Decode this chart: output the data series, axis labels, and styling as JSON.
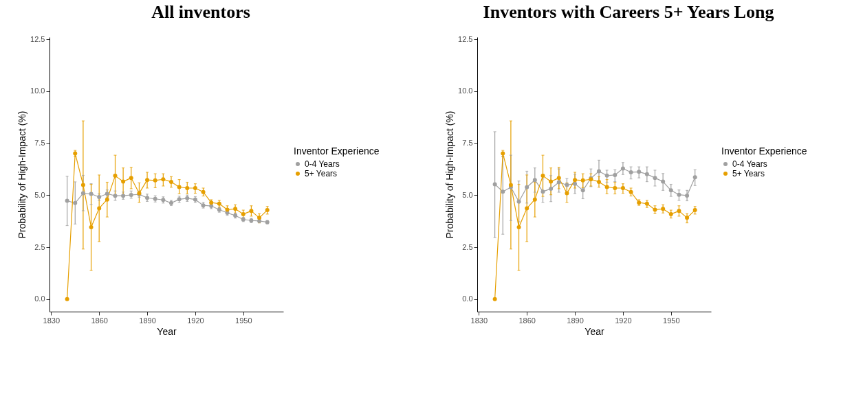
{
  "chart_data": [
    {
      "type": "line",
      "title": "All inventors",
      "xlabel": "Year",
      "ylabel": "Probability of High-Impact (%)",
      "legend_title": "Inventor Experience",
      "legend": "right",
      "marker": "circle",
      "grid": false,
      "x": [
        1840,
        1845,
        1850,
        1855,
        1860,
        1865,
        1870,
        1875,
        1880,
        1885,
        1890,
        1895,
        1900,
        1905,
        1910,
        1915,
        1920,
        1925,
        1930,
        1935,
        1940,
        1945,
        1950,
        1955,
        1960,
        1965
      ],
      "xlim": [
        1829,
        1975
      ],
      "xticks": [
        1830,
        1860,
        1890,
        1920,
        1950
      ],
      "ylim": [
        -0.6,
        12.6
      ],
      "yticks": [
        {
          "value": 0,
          "label": "0.0"
        },
        2.5,
        {
          "value": 5,
          "label": "5.0"
        },
        7.5,
        {
          "value": 10,
          "label": "10.0"
        },
        12.5
      ],
      "series": [
        {
          "name": "0-4 Years",
          "color": "#a0a0a0",
          "values": [
            4.73,
            4.62,
            5.09,
            5.06,
            4.91,
            5.07,
            4.97,
            4.97,
            5.01,
            5.04,
            4.87,
            4.82,
            4.77,
            4.62,
            4.8,
            4.85,
            4.79,
            4.51,
            4.48,
            4.3,
            4.15,
            4.02,
            3.83,
            3.78,
            3.76,
            3.7
          ],
          "errors": [
            [
              3.54,
              5.91
            ],
            [
              3.61,
              5.64
            ],
            [
              4.25,
              5.95
            ],
            [
              4.55,
              5.55
            ],
            [
              4.75,
              5.07
            ],
            [
              4.9,
              5.25
            ],
            [
              4.75,
              5.2
            ],
            [
              4.8,
              5.15
            ],
            [
              4.85,
              5.2
            ],
            [
              4.9,
              5.2
            ],
            [
              4.7,
              5.05
            ],
            [
              4.67,
              4.97
            ],
            [
              4.62,
              4.92
            ],
            [
              4.5,
              4.75
            ],
            [
              4.65,
              4.95
            ],
            [
              4.7,
              5.0
            ],
            [
              4.65,
              4.93
            ],
            [
              4.38,
              4.65
            ],
            [
              4.35,
              4.6
            ],
            [
              4.18,
              4.42
            ],
            [
              4.03,
              4.27
            ],
            [
              3.9,
              4.13
            ],
            [
              3.73,
              3.93
            ],
            [
              3.68,
              3.88
            ],
            [
              3.67,
              3.85
            ],
            [
              3.62,
              3.78
            ]
          ]
        },
        {
          "name": "5+ Years",
          "color": "#e69f00",
          "values": [
            0,
            7.01,
            5.49,
            3.46,
            4.37,
            4.79,
            5.93,
            5.65,
            5.83,
            5.09,
            5.73,
            5.71,
            5.76,
            5.64,
            5.39,
            5.34,
            5.34,
            5.15,
            4.64,
            4.59,
            4.3,
            4.34,
            4.09,
            4.24,
            3.91,
            4.28
          ],
          "errors": [
            null,
            [
              6.85,
              7.15
            ],
            [
              2.41,
              8.57
            ],
            [
              1.38,
              5.52
            ],
            [
              2.77,
              5.97
            ],
            [
              3.95,
              5.62
            ],
            [
              4.94,
              6.92
            ],
            [
              5.02,
              6.31
            ],
            [
              5.31,
              6.34
            ],
            [
              4.65,
              5.59
            ],
            [
              5.34,
              6.1
            ],
            [
              5.36,
              6.03
            ],
            [
              5.44,
              6.03
            ],
            [
              5.38,
              5.89
            ],
            [
              5.07,
              5.75
            ],
            [
              5.06,
              5.62
            ],
            [
              5.09,
              5.55
            ],
            [
              4.96,
              5.34
            ],
            [
              4.51,
              4.78
            ],
            [
              4.41,
              4.75
            ],
            [
              4.11,
              4.49
            ],
            [
              4.14,
              4.54
            ],
            [
              3.9,
              4.28
            ],
            [
              3.99,
              4.49
            ],
            [
              3.67,
              4.11
            ],
            [
              4.09,
              4.46
            ]
          ]
        }
      ]
    },
    {
      "type": "line",
      "title": "Inventors with Careers 5+ Years Long",
      "xlabel": "Year",
      "ylabel": "Probability of High-Impact (%)",
      "legend_title": "Inventor Experience",
      "legend": "right",
      "marker": "circle",
      "grid": false,
      "x": [
        1840,
        1845,
        1850,
        1855,
        1860,
        1865,
        1870,
        1875,
        1880,
        1885,
        1890,
        1895,
        1900,
        1905,
        1910,
        1915,
        1920,
        1925,
        1930,
        1935,
        1940,
        1945,
        1950,
        1955,
        1960,
        1965
      ],
      "xlim": [
        1829,
        1975
      ],
      "xticks": [
        1830,
        1860,
        1890,
        1920,
        1950
      ],
      "ylim": [
        -0.6,
        12.6
      ],
      "yticks": [
        {
          "value": 0,
          "label": "0.0"
        },
        2.5,
        {
          "value": 5,
          "label": "5.0"
        },
        7.5,
        {
          "value": 10,
          "label": "10.0"
        },
        12.5
      ],
      "series": [
        {
          "name": "0-4 Years",
          "color": "#a0a0a0",
          "values": [
            5.52,
            5.17,
            5.38,
            4.69,
            5.38,
            5.73,
            5.17,
            5.31,
            5.62,
            5.49,
            5.55,
            5.23,
            5.81,
            6.15,
            5.94,
            5.97,
            6.28,
            6.1,
            6.12,
            6.01,
            5.83,
            5.65,
            5.23,
            5.02,
            4.98,
            5.86
          ],
          "errors": [
            [
              2.96,
              8.05
            ],
            [
              3.12,
              6.87
            ],
            [
              3.78,
              6.92
            ],
            [
              3.72,
              5.68
            ],
            [
              4.62,
              6.15
            ],
            [
              5.14,
              6.31
            ],
            [
              4.65,
              5.78
            ],
            [
              4.69,
              5.94
            ],
            [
              5.14,
              6.26
            ],
            [
              5.14,
              5.8
            ],
            [
              5.08,
              6.0
            ],
            [
              4.83,
              5.65
            ],
            [
              5.41,
              6.26
            ],
            [
              5.68,
              6.68
            ],
            [
              5.62,
              6.2
            ],
            [
              5.65,
              6.22
            ],
            [
              5.99,
              6.57
            ],
            [
              5.78,
              6.36
            ],
            [
              5.83,
              6.36
            ],
            [
              5.65,
              6.36
            ],
            [
              5.44,
              6.2
            ],
            [
              5.23,
              6.04
            ],
            [
              4.94,
              5.52
            ],
            [
              4.75,
              5.25
            ],
            [
              4.73,
              5.23
            ],
            [
              5.46,
              6.22
            ]
          ]
        },
        {
          "name": "5+ Years",
          "color": "#e69f00",
          "values": [
            0,
            7.01,
            5.49,
            3.46,
            4.37,
            4.79,
            5.93,
            5.65,
            5.83,
            5.09,
            5.73,
            5.71,
            5.76,
            5.64,
            5.39,
            5.34,
            5.34,
            5.15,
            4.64,
            4.59,
            4.3,
            4.34,
            4.09,
            4.24,
            3.91,
            4.28
          ],
          "errors": [
            null,
            [
              6.85,
              7.15
            ],
            [
              2.41,
              8.57
            ],
            [
              1.38,
              5.52
            ],
            [
              2.77,
              5.97
            ],
            [
              3.95,
              5.62
            ],
            [
              4.94,
              6.92
            ],
            [
              5.02,
              6.31
            ],
            [
              5.31,
              6.34
            ],
            [
              4.65,
              5.59
            ],
            [
              5.34,
              6.1
            ],
            [
              5.36,
              6.03
            ],
            [
              5.44,
              6.03
            ],
            [
              5.38,
              5.89
            ],
            [
              5.07,
              5.75
            ],
            [
              5.06,
              5.62
            ],
            [
              5.09,
              5.55
            ],
            [
              4.96,
              5.34
            ],
            [
              4.51,
              4.78
            ],
            [
              4.41,
              4.75
            ],
            [
              4.11,
              4.49
            ],
            [
              4.14,
              4.54
            ],
            [
              3.9,
              4.28
            ],
            [
              3.99,
              4.49
            ],
            [
              3.67,
              4.11
            ],
            [
              4.09,
              4.46
            ]
          ]
        }
      ]
    }
  ]
}
